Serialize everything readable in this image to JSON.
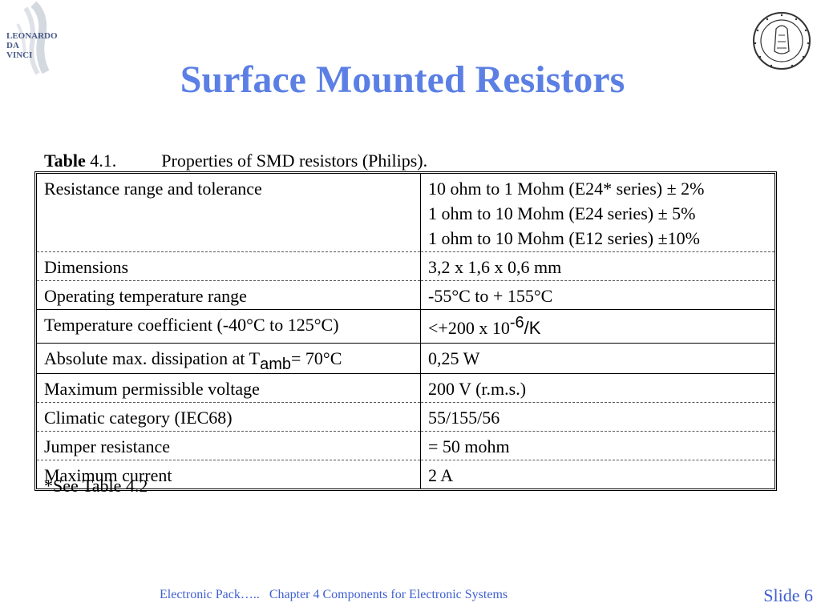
{
  "slide": {
    "title": "Surface Mounted Resistors",
    "caption": {
      "label": "Table",
      "number": "4.1.",
      "text": "Properties of SMD resistors (Philips)."
    },
    "table": {
      "rows": [
        {
          "property": "Resistance range and tolerance",
          "value": "10 ohm to 1 Mohm (E24* series) ± 2%\n1 ohm to 10 Mohm (E24 series) ± 5%\n1 ohm to 10 Mohm (E12 series) ±10%"
        },
        {
          "property": "Dimensions",
          "value": "3,2 x 1,6 x 0,6 mm"
        },
        {
          "property": "Operating temperature range",
          "value": "-55°C to + 155°C"
        },
        {
          "property": "Temperature coefficient (-40°C to 125°C)",
          "value_prefix": "<+200 x 10",
          "value_sup": "-6",
          "value_suffix": "/K"
        },
        {
          "property_prefix": "Absolute max. dissipation at T",
          "property_sub": "amb",
          "property_suffix": "= 70°C",
          "value": "0,25 W"
        },
        {
          "property": "Maximum permissible voltage",
          "value": "200 V (r.m.s.)"
        },
        {
          "property": "Climatic category (IEC68)",
          "value": "55/155/56"
        },
        {
          "property": "Jumper resistance",
          "value": "= 50 mohm"
        },
        {
          "property": "Maximum current",
          "value": "2 A"
        }
      ]
    },
    "footnote": "*See Table 4.2",
    "footer": {
      "left": "Electronic Pack…..",
      "chapter": "Chapter 4 Components for Electronic Systems",
      "slide_label": "Slide 6"
    },
    "logos": {
      "left_text": [
        "LEONARDO",
        "DA",
        "VINCI"
      ]
    }
  }
}
